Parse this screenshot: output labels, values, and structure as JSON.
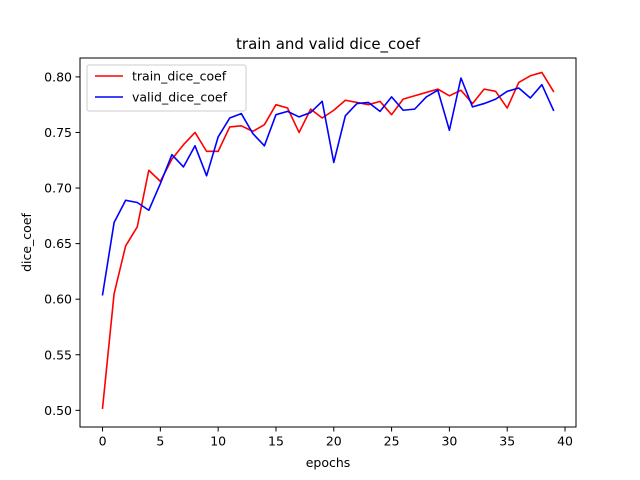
{
  "chart_data": {
    "type": "line",
    "title": "train and valid dice_coef",
    "xlabel": "epochs",
    "ylabel": "dice_coef",
    "xlim": [
      -1.95,
      40.95
    ],
    "ylim": [
      0.485,
      0.817
    ],
    "xticks": [
      0,
      5,
      10,
      15,
      20,
      25,
      30,
      35,
      40
    ],
    "yticks": [
      0.5,
      0.55,
      0.6,
      0.65,
      0.7,
      0.75,
      0.8
    ],
    "grid": false,
    "legend_position": "top-left",
    "x": [
      0,
      1,
      2,
      3,
      4,
      5,
      6,
      7,
      8,
      9,
      10,
      11,
      12,
      13,
      14,
      15,
      16,
      17,
      18,
      19,
      20,
      21,
      22,
      23,
      24,
      25,
      26,
      27,
      28,
      29,
      30,
      31,
      32,
      33,
      34,
      35,
      36,
      37,
      38,
      39
    ],
    "series": [
      {
        "name": "train_dice_coef",
        "color": "#ff0000",
        "values": [
          0.502,
          0.605,
          0.648,
          0.665,
          0.716,
          0.706,
          0.726,
          0.739,
          0.75,
          0.733,
          0.733,
          0.755,
          0.756,
          0.751,
          0.757,
          0.775,
          0.772,
          0.75,
          0.771,
          0.763,
          0.77,
          0.779,
          0.777,
          0.775,
          0.778,
          0.766,
          0.78,
          0.783,
          0.786,
          0.789,
          0.783,
          0.788,
          0.776,
          0.789,
          0.787,
          0.772,
          0.795,
          0.801,
          0.804,
          0.787
        ]
      },
      {
        "name": "valid_dice_coef",
        "color": "#0000ff",
        "values": [
          0.604,
          0.669,
          0.689,
          0.687,
          0.68,
          0.704,
          0.73,
          0.719,
          0.738,
          0.711,
          0.746,
          0.763,
          0.767,
          0.749,
          0.738,
          0.766,
          0.769,
          0.764,
          0.768,
          0.778,
          0.723,
          0.765,
          0.776,
          0.777,
          0.769,
          0.782,
          0.77,
          0.771,
          0.782,
          0.788,
          0.752,
          0.799,
          0.773,
          0.776,
          0.78,
          0.787,
          0.79,
          0.781,
          0.793,
          0.77
        ]
      }
    ]
  }
}
